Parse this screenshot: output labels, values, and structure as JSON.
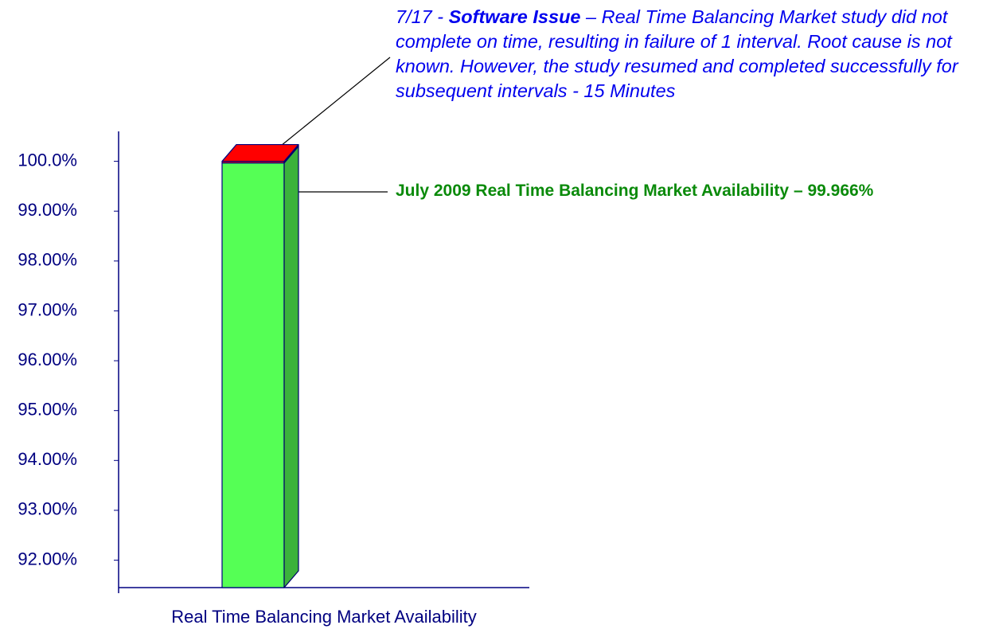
{
  "chart_data": {
    "type": "stacked_bar_3d",
    "categories": [
      "Real Time Balancing Market Availability"
    ],
    "series": [
      {
        "color": "#55ff55",
        "values": [
          99.966
        ]
      },
      {
        "color": "#ff0000",
        "values": [
          0.034
        ]
      }
    ],
    "ylim": [
      91.45,
      100.6
    ],
    "yticks": [
      {
        "value": 92,
        "label": "92.00%"
      },
      {
        "value": 93,
        "label": "93.00%"
      },
      {
        "value": 94,
        "label": "94.00%"
      },
      {
        "value": 95,
        "label": "95.00%"
      },
      {
        "value": 96,
        "label": "96.00%"
      },
      {
        "value": 97,
        "label": "97.00%"
      },
      {
        "value": 98,
        "label": "98.00%"
      },
      {
        "value": 99,
        "label": "99.00%"
      },
      {
        "value": 100,
        "label": "100.0%"
      }
    ],
    "annotations": [
      {
        "parts": [
          "7/17 - ",
          "Software Issue",
          " – Real Time Balancing Market study did not complete on time, resulting in failure of 1 interval. Root cause is not known. However, the study resumed and completed successfully for subsequent intervals - 15 Minutes"
        ]
      },
      {
        "text": "July 2009 Real Time Balancing Market Availability – 99.966%"
      }
    ]
  }
}
